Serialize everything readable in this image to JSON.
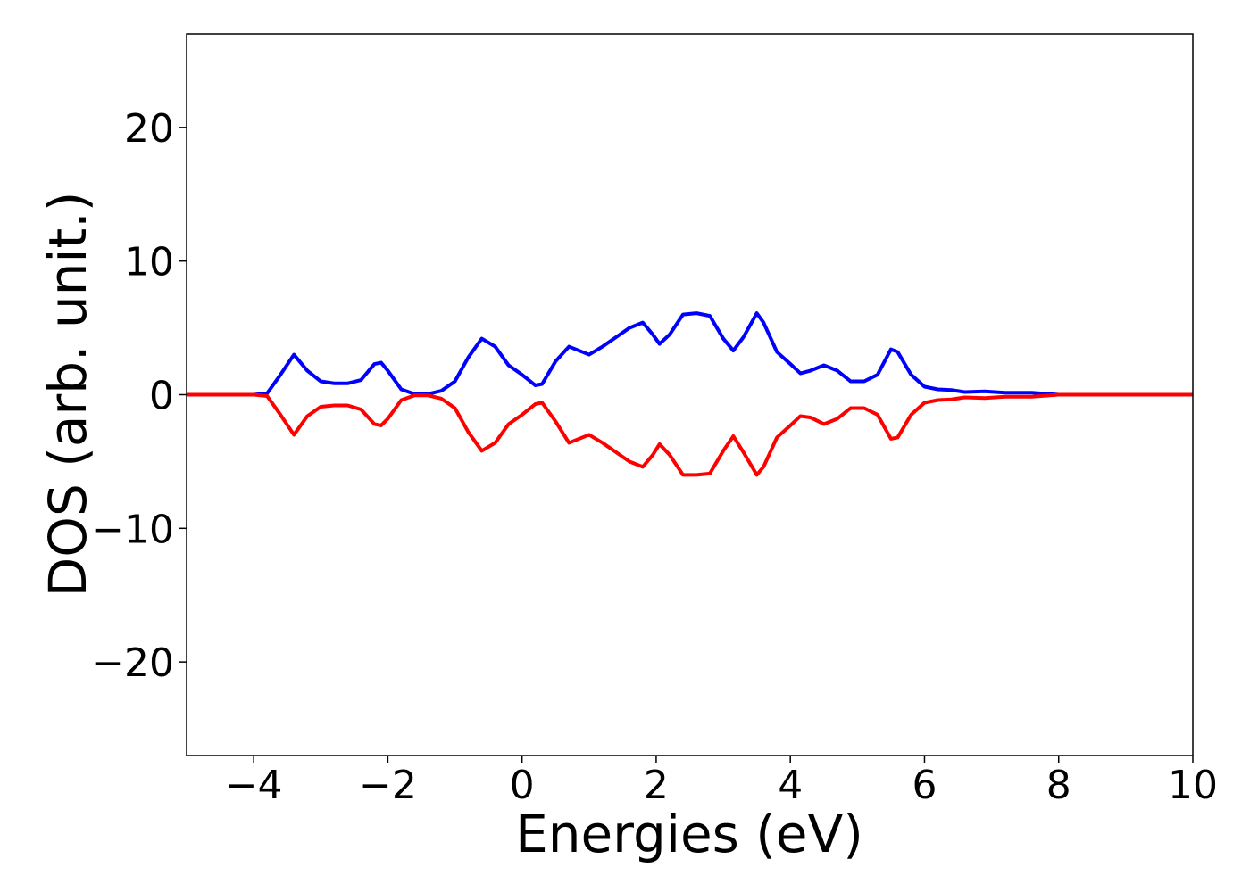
{
  "chart_data": {
    "type": "line",
    "x_label": "Energies (eV)",
    "y_label": "DOS (arb. unit.)",
    "x": [
      -5,
      -4,
      -3.8,
      -3.6,
      -3.4,
      -3.2,
      -3.0,
      -2.8,
      -2.6,
      -2.4,
      -2.2,
      -2.1,
      -2.0,
      -1.8,
      -1.6,
      -1.4,
      -1.2,
      -1.0,
      -0.8,
      -0.6,
      -0.4,
      -0.2,
      0,
      0.2,
      0.3,
      0.5,
      0.7,
      0.85,
      1.0,
      1.2,
      1.4,
      1.6,
      1.8,
      1.95,
      2.05,
      2.2,
      2.4,
      2.6,
      2.8,
      3.0,
      3.15,
      3.3,
      3.5,
      3.6,
      3.8,
      4.0,
      4.15,
      4.3,
      4.5,
      4.7,
      4.9,
      5.1,
      5.3,
      5.5,
      5.6,
      5.8,
      6.0,
      6.2,
      6.4,
      6.6,
      6.9,
      7.2,
      7.6,
      8,
      10
    ],
    "series": [
      {
        "color": "#0000ff",
        "values": [
          0,
          0,
          0.1,
          1.5,
          3.0,
          1.8,
          1.0,
          0.85,
          0.85,
          1.1,
          2.3,
          2.4,
          1.8,
          0.4,
          0.05,
          0.05,
          0.3,
          1.0,
          2.8,
          4.2,
          3.6,
          2.2,
          1.5,
          0.7,
          0.8,
          2.5,
          3.6,
          3.3,
          3.0,
          3.6,
          4.3,
          5.0,
          5.4,
          4.5,
          3.8,
          4.5,
          6.0,
          6.1,
          5.9,
          4.2,
          3.3,
          4.3,
          6.1,
          5.4,
          3.2,
          2.3,
          1.6,
          1.8,
          2.2,
          1.8,
          1.0,
          1.0,
          1.5,
          3.4,
          3.2,
          1.5,
          0.6,
          0.4,
          0.35,
          0.2,
          0.25,
          0.15,
          0.15,
          0,
          0
        ]
      },
      {
        "color": "#ff0000",
        "values": [
          0,
          0,
          -0.1,
          -1.5,
          -3.0,
          -1.6,
          -0.9,
          -0.8,
          -0.8,
          -1.1,
          -2.2,
          -2.3,
          -1.8,
          -0.4,
          -0.05,
          -0.05,
          -0.3,
          -1.0,
          -2.8,
          -4.2,
          -3.6,
          -2.2,
          -1.5,
          -0.7,
          -0.6,
          -2.0,
          -3.6,
          -3.3,
          -3.0,
          -3.6,
          -4.3,
          -5.0,
          -5.4,
          -4.5,
          -3.7,
          -4.5,
          -6.0,
          -6.0,
          -5.9,
          -4.2,
          -3.1,
          -4.3,
          -6.0,
          -5.4,
          -3.2,
          -2.3,
          -1.6,
          -1.7,
          -2.2,
          -1.8,
          -1.0,
          -1.0,
          -1.5,
          -3.3,
          -3.2,
          -1.5,
          -0.6,
          -0.4,
          -0.35,
          -0.2,
          -0.25,
          -0.15,
          -0.15,
          0,
          0
        ]
      }
    ],
    "xlim": [
      -5,
      10
    ],
    "ylim": [
      -27,
      27
    ],
    "xticks": [
      {
        "value": -4,
        "label": "−4"
      },
      {
        "value": -2,
        "label": "−2"
      },
      0,
      2,
      4,
      6,
      8,
      10
    ],
    "yticks": [
      {
        "value": -20,
        "label": "−20"
      },
      {
        "value": -10,
        "label": "−10"
      },
      0,
      10,
      20
    ],
    "grid": false
  }
}
